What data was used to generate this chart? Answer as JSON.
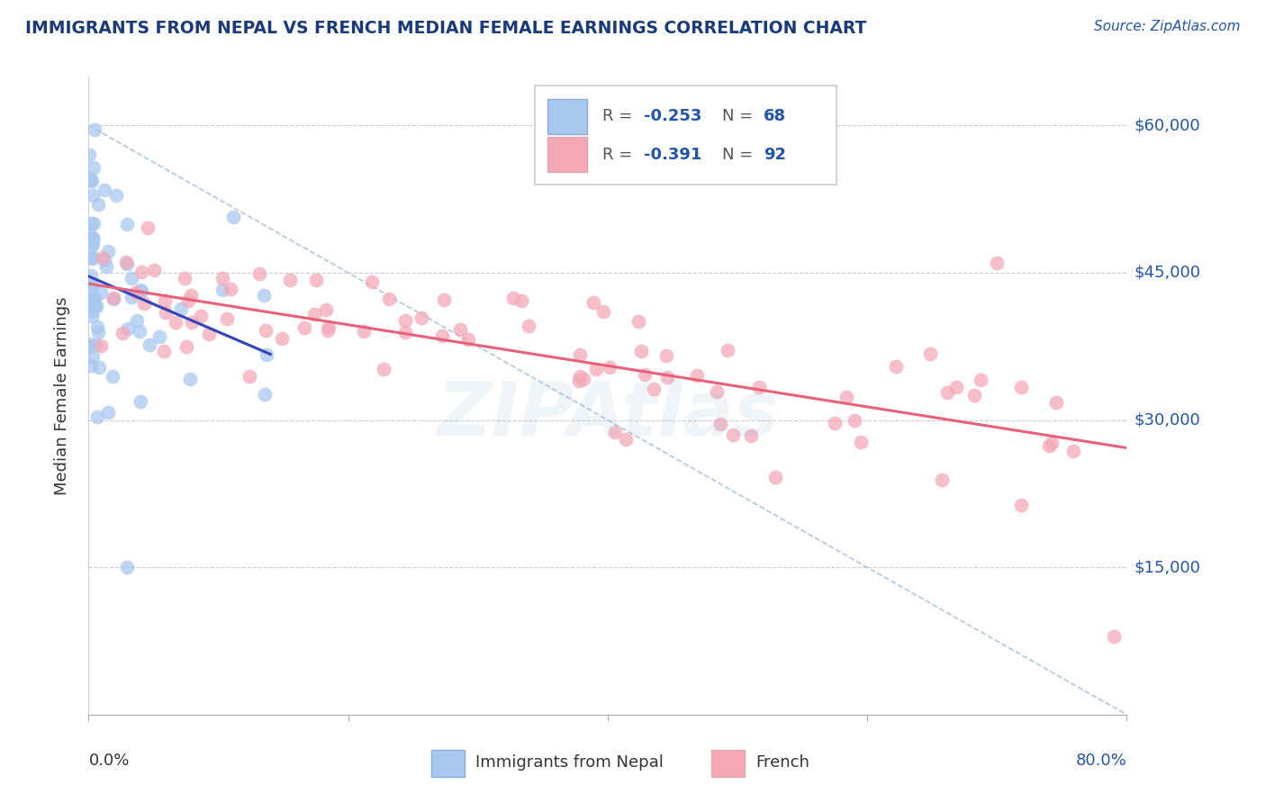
{
  "title": "IMMIGRANTS FROM NEPAL VS FRENCH MEDIAN FEMALE EARNINGS CORRELATION CHART",
  "source": "Source: ZipAtlas.com",
  "ylabel": "Median Female Earnings",
  "y_ticks": [
    0,
    15000,
    30000,
    45000,
    60000
  ],
  "y_tick_labels": [
    "",
    "$15,000",
    "$30,000",
    "$45,000",
    "$60,000"
  ],
  "xlim": [
    0.0,
    80.0
  ],
  "ylim": [
    0,
    65000
  ],
  "nepal_color": "#a8c8f0",
  "french_color": "#f4a8b8",
  "nepal_line_color": "#3344bb",
  "french_line_color": "#e8607a",
  "diag_line_color": "#8ab0d8",
  "watermark": "ZIPAtlas",
  "watermark_color": "#99bbdd",
  "title_color": "#1a3a7a",
  "source_color": "#2255aa",
  "tick_label_color": "#2255aa",
  "legend_r1": "-0.253",
  "legend_n1": "68",
  "legend_r2": "-0.391",
  "legend_n2": "92"
}
